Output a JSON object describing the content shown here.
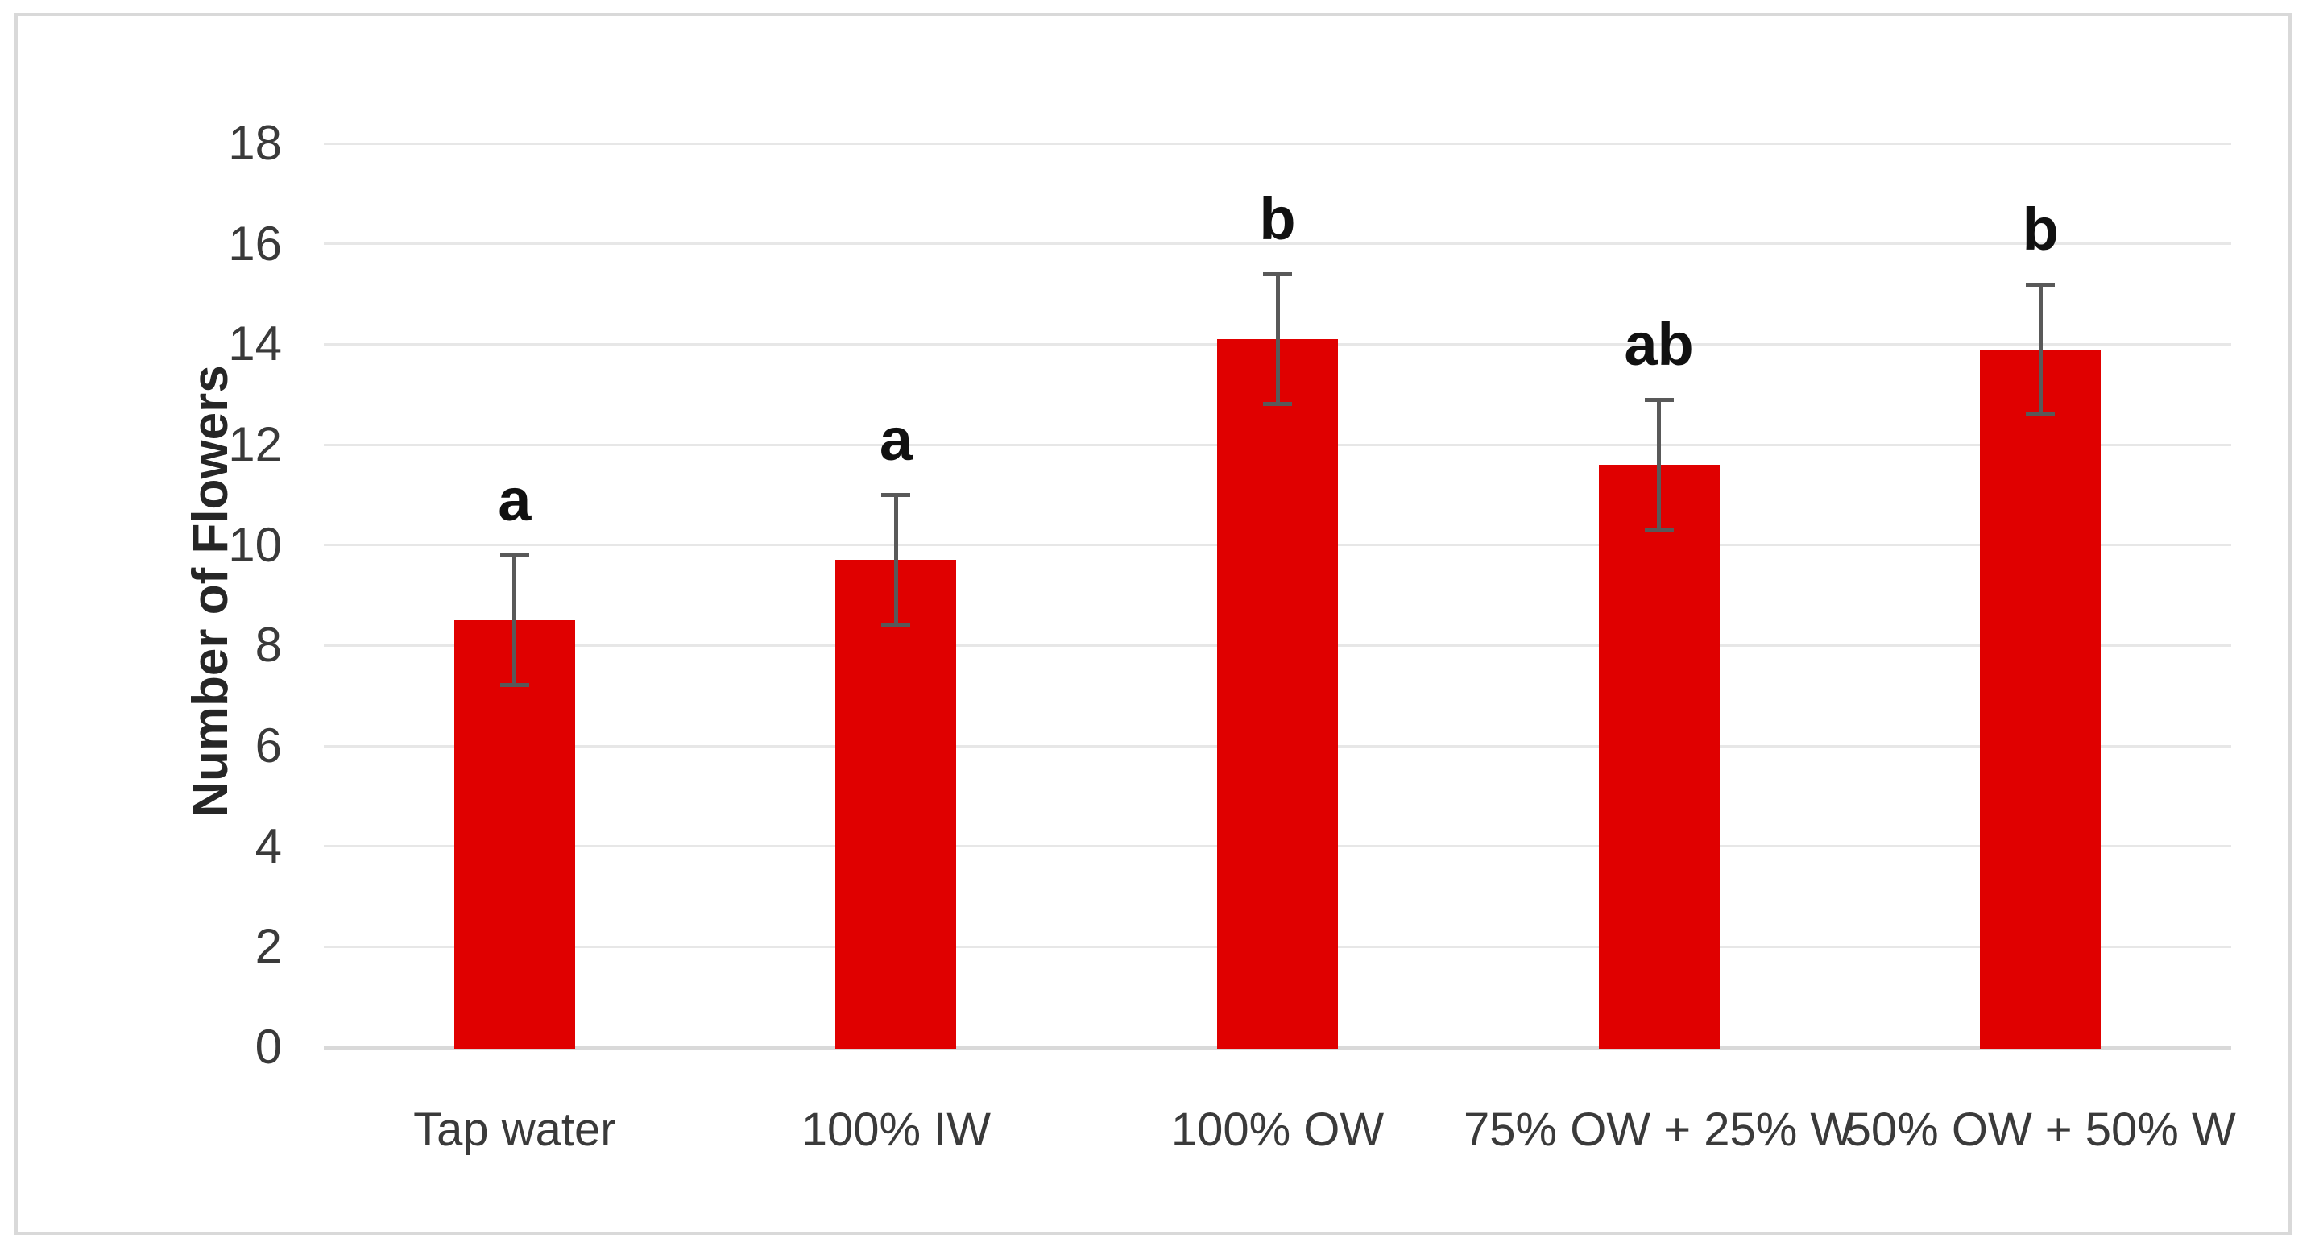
{
  "figure": {
    "background": "#ffffff",
    "border_color": "#d9d9d9"
  },
  "chart_data": {
    "type": "bar",
    "title": "",
    "xlabel": "",
    "ylabel": "Number of Flowers",
    "ylim": [
      0,
      18
    ],
    "yticks": [
      0,
      2,
      4,
      6,
      8,
      10,
      12,
      14,
      16,
      18
    ],
    "grid": "horizontal",
    "legend": "none",
    "categories": [
      "Tap water",
      "100% IW",
      "100% OW",
      "75% OW + 25% W",
      "50% OW + 50% W"
    ],
    "series": [
      {
        "name": "Number of Flowers",
        "values": [
          8.5,
          9.7,
          14.1,
          11.6,
          13.9
        ],
        "error_low": [
          7.2,
          8.4,
          12.8,
          10.3,
          12.6
        ],
        "error_high": [
          9.8,
          11.0,
          15.4,
          12.9,
          15.2
        ],
        "significance_letters": [
          "a",
          "a",
          "b",
          "ab",
          "b"
        ]
      }
    ],
    "colors": {
      "bar": "#e00000",
      "error_bar": "#595959",
      "gridline": "#e7e7e7",
      "axis_line": "#d9d9d9",
      "tick_label": "#3a3a3a",
      "significance_letter": "#111111",
      "axis_title": "#262626"
    }
  }
}
